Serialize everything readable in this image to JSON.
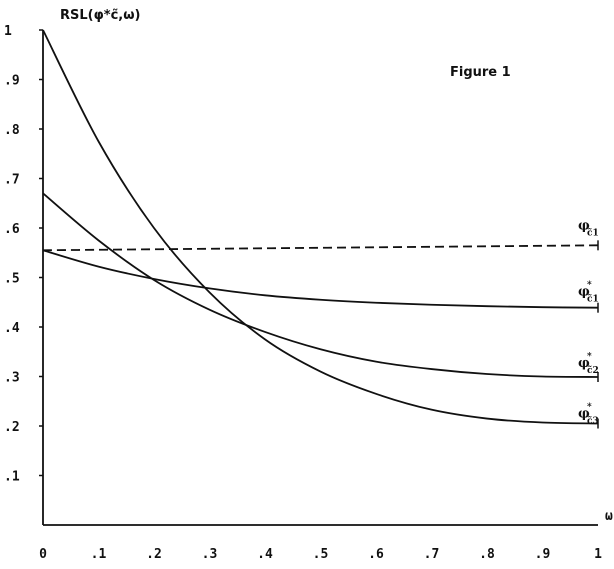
{
  "chart_data": {
    "type": "line",
    "title": "Figure 1",
    "ylabel": "RSL(φ*c̃,ω)",
    "xlabel": "ω",
    "xlim": [
      0,
      1
    ],
    "ylim": [
      0,
      1
    ],
    "x_ticks": [
      "0",
      ".1",
      ".2",
      ".3",
      ".4",
      ".5",
      ".6",
      ".7",
      ".8",
      ".9",
      "1"
    ],
    "y_ticks": [
      ".1",
      ".2",
      ".3",
      ".4",
      ".5",
      ".6",
      ".7",
      ".8",
      ".9",
      "1"
    ],
    "grid": false,
    "x": [
      0,
      0.1,
      0.2,
      0.3,
      0.4,
      0.5,
      0.6,
      0.7,
      0.8,
      0.9,
      1.0
    ],
    "series": [
      {
        "label": "φc̃1",
        "label_main": "φ",
        "label_sub": "c̃1",
        "label_sup": "",
        "style": "dashed",
        "values": [
          0.555,
          0.556,
          0.557,
          0.558,
          0.559,
          0.56,
          0.561,
          0.562,
          0.563,
          0.564,
          0.565
        ]
      },
      {
        "label": "φ*c̃1",
        "label_main": "φ",
        "label_sub": "c̃1",
        "label_sup": "*",
        "style": "solid",
        "values": [
          0.555,
          0.522,
          0.497,
          0.478,
          0.464,
          0.455,
          0.449,
          0.445,
          0.442,
          0.44,
          0.439
        ]
      },
      {
        "label": "φ*c̃2",
        "label_main": "φ",
        "label_sub": "c̃2",
        "label_sup": "*",
        "style": "solid",
        "values": [
          0.67,
          0.575,
          0.495,
          0.435,
          0.39,
          0.355,
          0.33,
          0.315,
          0.305,
          0.3,
          0.299
        ]
      },
      {
        "label": "φ*c̃3",
        "label_main": "φ",
        "label_sub": "c̃3",
        "label_sup": "*",
        "style": "solid",
        "values": [
          1.0,
          0.775,
          0.6,
          0.47,
          0.375,
          0.31,
          0.265,
          0.233,
          0.215,
          0.207,
          0.205
        ]
      }
    ]
  }
}
